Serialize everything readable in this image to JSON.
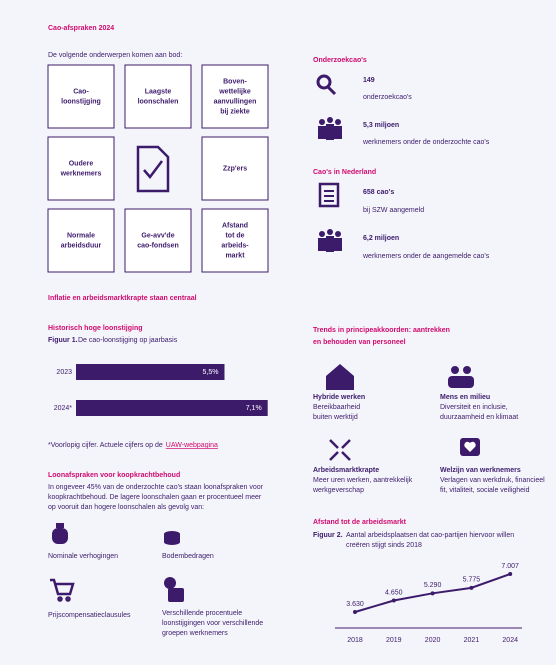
{
  "header": {
    "title": "Cao-afspraken 2024",
    "intro": "De volgende onderwerpen komen aan bod:"
  },
  "topics": [
    [
      "Cao-",
      "loonstijging"
    ],
    [
      "Laagste",
      "loonschalen"
    ],
    [
      "Boven-",
      "wettelijke",
      "aanvullingen",
      "bij ziekte"
    ],
    [
      "Oudere",
      "werknemers"
    ],
    [
      "Zzp'ers"
    ],
    [
      "Normale",
      "arbeidsduur"
    ],
    [
      "Ge-avv'de",
      "cao-fondsen"
    ],
    [
      "Afstand",
      "tot de",
      "arbeids-",
      "markt"
    ]
  ],
  "stats": [
    {
      "title": "Onderzoekcao's",
      "items": [
        {
          "value": "149",
          "label": "onderzoekcao's"
        },
        {
          "value": "5,3 miljoen",
          "label": "werknemers onder de onderzochte cao's"
        }
      ]
    },
    {
      "title": "Cao's in Nederland",
      "items": [
        {
          "value": "658 cao's",
          "label": "bij SZW aangemeld"
        },
        {
          "value": "6,2 miljoen",
          "label": "werknemers onder de aangemelde cao's"
        }
      ]
    }
  ],
  "section_title": "Inflatie en arbeidsmarktkrapte staan centraal",
  "loonstijging_chart": {
    "type": "bar",
    "title": "Historisch hoge loonstijging",
    "figure": "Figuur 1.",
    "caption": "De cao-loonstijging op jaarbasis",
    "categories": [
      "2023",
      "2024*"
    ],
    "values": [
      5.5,
      7.1
    ],
    "value_labels": [
      "5,5%",
      "7,1%"
    ],
    "color": "#3d1b6b"
  },
  "footnote": {
    "text": "*Voorlopig cijfer. Actuele cijfers op de",
    "link": "UAW-webpagina"
  },
  "loonafspraken": {
    "title": "Loonafspraken voor koopkrachtbehoud",
    "text": [
      "In ongeveer 45% van de onderzochte cao's staan loonafspraken voor",
      "koopkrachtbehoud. De lagere loonschalen gaan er procentueel meer",
      "op vooruit dan hogere loonschalen als gevolg van:"
    ],
    "items": [
      [
        "Nominale verhogingen"
      ],
      [
        "Bodembedragen"
      ],
      [
        "Prijscompensatieclausules"
      ],
      [
        "Verschillende procentuele",
        "loonstijgingen voor verschillende",
        "groepen werknemers"
      ]
    ]
  },
  "trends": {
    "title": [
      "Trends in principeakkoorden: aantrekken",
      "en behouden van personeel"
    ],
    "items": [
      {
        "title": "Hybride werken",
        "text": [
          "Bereikbaarheid",
          "buiten werktijd"
        ]
      },
      {
        "title": "Mens en milieu",
        "text": [
          "Diversiteit en inclusie,",
          "duurzaamheid en klimaat"
        ]
      },
      {
        "title": "Arbeidsmarktkrapte",
        "text": [
          "Meer uren werken, aantrekkelijk",
          "werkgeverschap"
        ]
      },
      {
        "title": "Welzijn van werknemers",
        "text": [
          "Verlagen van werkdruk, financieel",
          "fit, vitaliteit, sociale veiligheid"
        ]
      }
    ]
  },
  "arbeidsmarkt_chart": {
    "type": "line",
    "title": "Afstand tot de arbeidsmarkt",
    "figure": "Figuur 2.",
    "caption": [
      "Aantal arbeidsplaatsen dat cao-partijen hiervoor willen",
      "creëren stijgt sinds 2018"
    ],
    "categories": [
      "2018",
      "2019",
      "2020",
      "2021",
      "2024"
    ],
    "values": [
      3630,
      4650,
      5290,
      5775,
      7007
    ],
    "value_labels": [
      "3.630",
      "4.650",
      "5.290",
      "5.775",
      "7.007"
    ],
    "color": "#3d1b6b"
  }
}
